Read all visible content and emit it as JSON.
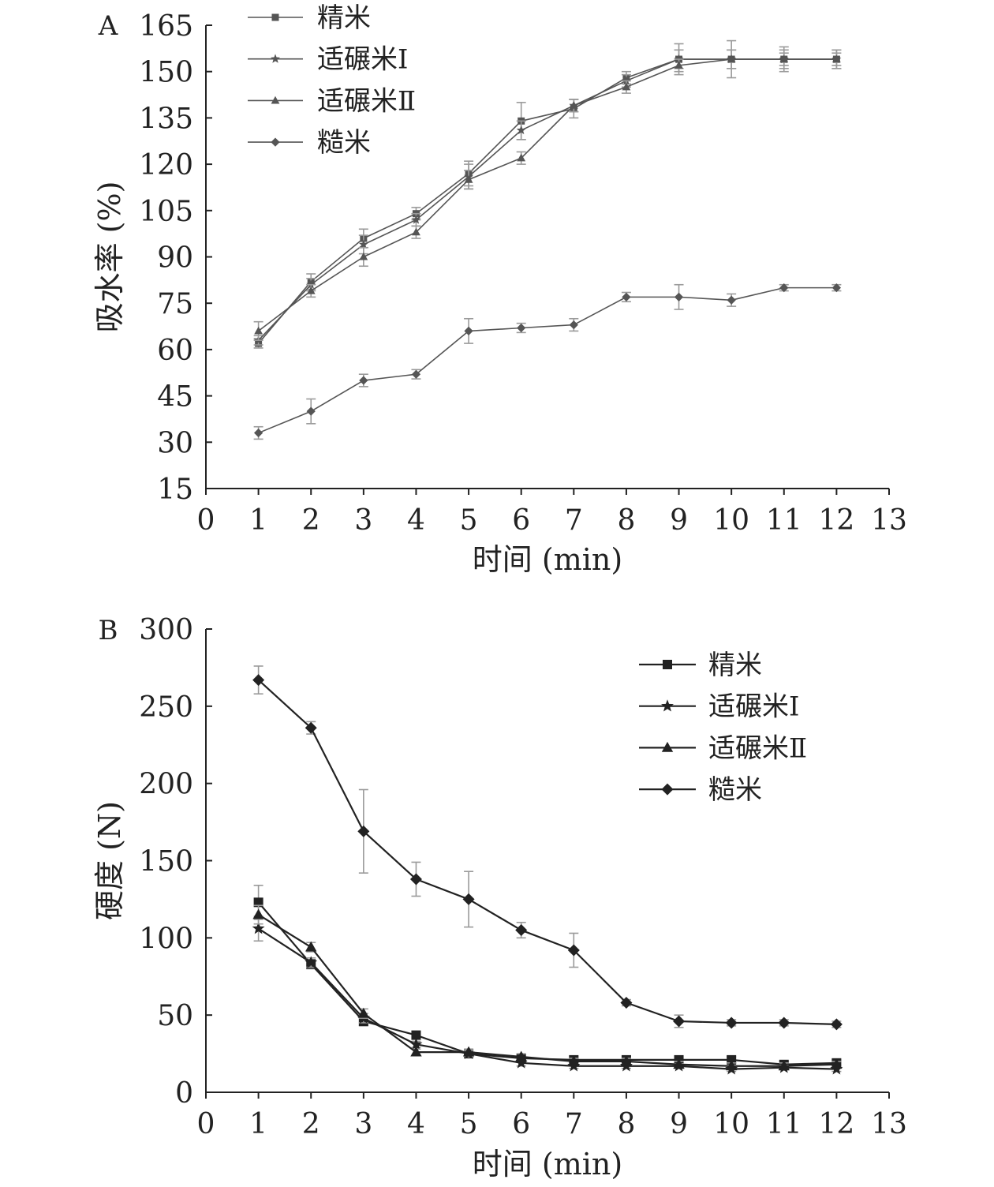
{
  "colors": {
    "panel_a": "#555555",
    "panel_b": "#222222",
    "error_bar": "#9a9a9a",
    "text": "#222222"
  },
  "chart_data": [
    {
      "type": "line",
      "panel_label": "A",
      "title": "",
      "xlabel": "时间 (min)",
      "ylabel": "吸水率 (%)",
      "xlim": [
        0,
        13
      ],
      "ylim": [
        15,
        165
      ],
      "xticks": [
        0,
        1,
        2,
        3,
        4,
        5,
        6,
        7,
        8,
        9,
        10,
        11,
        12,
        13
      ],
      "yticks": [
        15,
        30,
        45,
        60,
        75,
        90,
        105,
        120,
        135,
        150,
        165
      ],
      "legend_position": "top-left",
      "x": [
        1,
        2,
        3,
        4,
        5,
        6,
        7,
        8,
        9,
        10,
        11,
        12
      ],
      "series": [
        {
          "name": "精米",
          "marker": "square",
          "values": [
            62,
            82,
            96,
            104,
            117,
            134,
            138,
            148,
            154,
            154,
            154,
            154
          ],
          "errors": [
            1.5,
            2.5,
            3,
            2,
            4,
            6,
            3,
            2,
            5,
            6,
            4,
            3
          ]
        },
        {
          "name": "适碾米Ⅰ",
          "marker": "star",
          "values": [
            63,
            81,
            94,
            102,
            116,
            131,
            139,
            147,
            154,
            154,
            154,
            154
          ],
          "errors": [
            1.5,
            2,
            3,
            2,
            4,
            3,
            2,
            2,
            3,
            3,
            3,
            3
          ]
        },
        {
          "name": "适碾米Ⅱ",
          "marker": "triangle",
          "values": [
            66,
            79,
            90,
            98,
            115,
            122,
            139,
            145,
            152,
            154,
            154,
            154
          ],
          "errors": [
            3,
            2,
            3,
            2,
            3,
            2,
            2,
            2,
            2,
            3,
            2,
            2
          ]
        },
        {
          "name": "糙米",
          "marker": "diamond",
          "values": [
            33,
            40,
            50,
            52,
            66,
            67,
            68,
            77,
            77,
            76,
            80,
            80
          ],
          "errors": [
            2,
            4,
            2,
            1.5,
            4,
            1.5,
            2,
            1.5,
            4,
            2,
            1,
            1
          ]
        }
      ]
    },
    {
      "type": "line",
      "panel_label": "B",
      "title": "",
      "xlabel": "时间 (min)",
      "ylabel": "硬度 (N)",
      "xlim": [
        0,
        13
      ],
      "ylim": [
        0,
        300
      ],
      "xticks": [
        0,
        1,
        2,
        3,
        4,
        5,
        6,
        7,
        8,
        9,
        10,
        11,
        12,
        13
      ],
      "yticks": [
        0,
        50,
        100,
        150,
        200,
        250,
        300
      ],
      "legend_position": "top-right",
      "x": [
        1,
        2,
        3,
        4,
        5,
        6,
        7,
        8,
        9,
        10,
        11,
        12
      ],
      "series": [
        {
          "name": "精米",
          "marker": "square",
          "values": [
            123,
            83,
            46,
            37,
            25,
            22,
            21,
            21,
            21,
            21,
            18,
            19
          ],
          "errors": [
            11,
            3,
            3,
            2,
            2,
            2,
            2,
            2,
            2,
            2,
            2,
            2
          ]
        },
        {
          "name": "适碾米Ⅰ",
          "marker": "star",
          "values": [
            106,
            84,
            48,
            31,
            25,
            19,
            17,
            17,
            17,
            15,
            16,
            15
          ],
          "errors": [
            8,
            3,
            3,
            2,
            2,
            2,
            1.5,
            1.5,
            1.5,
            1.5,
            1.5,
            1.5
          ]
        },
        {
          "name": "适碾米Ⅱ",
          "marker": "triangle",
          "values": [
            115,
            94,
            51,
            26,
            26,
            23,
            20,
            20,
            18,
            17,
            17,
            18
          ],
          "errors": [
            6,
            3,
            3,
            2,
            2,
            2,
            2,
            2,
            2,
            2,
            2,
            2
          ]
        },
        {
          "name": "糙米",
          "marker": "diamond",
          "values": [
            267,
            236,
            169,
            138,
            125,
            105,
            92,
            58,
            46,
            45,
            45,
            44
          ],
          "errors": [
            9,
            4,
            27,
            11,
            18,
            5,
            11,
            2,
            4,
            2,
            2,
            2
          ]
        }
      ]
    }
  ]
}
